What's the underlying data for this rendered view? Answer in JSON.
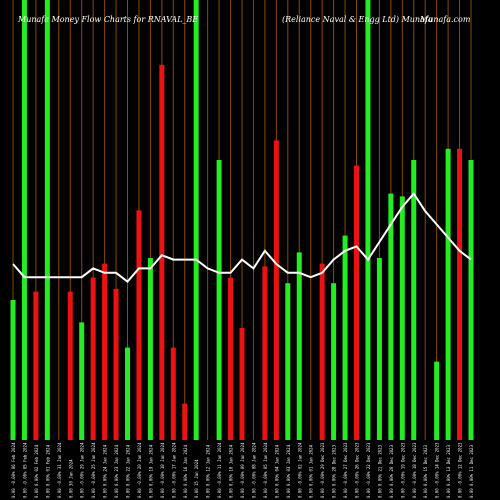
{
  "chart_data": {
    "type": "bar",
    "title_left": "Munafa Money Flow Charts for RNAVAL_BE",
    "title_right": "(Reliance Naval & Engg Ltd) Munafa",
    "title_site": "Munafa.com",
    "categories": [
      "06 Feb 2024",
      "05 Feb 2024",
      "02 Feb 2024",
      "01 Feb 2024",
      "31 Jan 2024",
      "30 Jan 2024",
      "29 Jan 2024",
      "25 Jan 2024",
      "24 Jan 2024",
      "23 Jan 2024",
      "22 Jan 2024",
      "20 Jan 2024",
      "19 Jan 2024",
      "18 Jan 2024",
      "17 Jan 2024",
      "16 Jan 2024",
      "15 Jan 2024",
      "12 Jan 2024",
      "11 Jan 2024",
      "10 Jan 2024",
      "09 Jan 2024",
      "08 Jan 2024",
      "05 Jan 2024",
      "04 Jan 2024",
      "03 Jan 2024",
      "02 Jan 2024",
      "01 Jan 2024",
      "29 Dec 2023",
      "28 Dec 2023",
      "27 Dec 2023",
      "26 Dec 2023",
      "22 Dec 2023",
      "21 Dec 2023",
      "20 Dec 2023",
      "19 Dec 2023",
      "18 Dec 2023",
      "15 Dec 2023",
      "14 Dec 2023",
      "13 Dec 2023",
      "12 Dec 2023",
      "11 Dec 2023"
    ],
    "tick_labels": [
      "0.00 -0.00%",
      "0.00 -0.00%",
      "0.00 0.00%",
      "0.00 0.00%",
      "0.00 -0.00%",
      "0.00",
      "0.00 -0.00%",
      "0.00 -0.00%",
      "0.00 0.00%",
      "0.00 0.00%",
      "0.00 0.00%",
      "0.00 -0.00%",
      "0.00 0.00%",
      "0.00 -0.00%",
      "0.00 -0.00%",
      "0.00 0.00%",
      "0.00",
      "0.00 0.00%",
      "0.00 -0.00%",
      "0.00 0.00%",
      "0.00 -0.00%",
      "0.00 -0.00%",
      "0.00 -0.00%",
      "0.00 0.00%",
      "0.00 0.00%",
      "0.00 -0.00%",
      "0.00 0.00%",
      "0.00 -0.00%",
      "0.00 0.00%",
      "0.00 -0.00%",
      "0.00 -0.00%",
      "0.00 -0.00%",
      "0.00 0.00%",
      "0.00 0.00%",
      "0.00 -0.00%",
      "0.00 -0.00%",
      "0.00 0.00%",
      "0.00 -0.00%",
      "0.00 0.00%",
      "0.00 -0.00%",
      "0.00 0.00%"
    ],
    "values": [
      50,
      100,
      53,
      100,
      0,
      53,
      42,
      58,
      63,
      54,
      33,
      82,
      65,
      134,
      33,
      13,
      45,
      0,
      100,
      58,
      40,
      0,
      62,
      107,
      56,
      67,
      0,
      63,
      56,
      73,
      98,
      25,
      65,
      88,
      87,
      100,
      0,
      28,
      104,
      104,
      100
    ],
    "bar_colors": [
      "green",
      "green",
      "red",
      "green",
      "red",
      "red",
      "green",
      "red",
      "red",
      "red",
      "green",
      "red",
      "green",
      "red",
      "red",
      "red",
      "green",
      "red",
      "green",
      "red",
      "red",
      "green",
      "red",
      "red",
      "green",
      "green",
      "green",
      "red",
      "green",
      "green",
      "red",
      "green",
      "green",
      "green",
      "green",
      "green",
      "red",
      "green",
      "green",
      "red",
      "green"
    ],
    "full_height_flags": [
      false,
      true,
      false,
      true,
      false,
      false,
      false,
      false,
      false,
      false,
      false,
      false,
      false,
      false,
      false,
      false,
      true,
      false,
      false,
      false,
      false,
      false,
      false,
      false,
      false,
      false,
      false,
      false,
      false,
      false,
      false,
      true,
      false,
      false,
      false,
      false,
      false,
      false,
      false,
      false,
      false
    ],
    "line_values": [
      40,
      37,
      37,
      37,
      37,
      37,
      37,
      39,
      38,
      38,
      36,
      39,
      39,
      42,
      41,
      41,
      41,
      39,
      38,
      38,
      41,
      39,
      43,
      40,
      38,
      38,
      37,
      38,
      41,
      43,
      44,
      41,
      45,
      49,
      53,
      56,
      52,
      49,
      46,
      43,
      41
    ],
    "ylim": [
      0,
      150
    ],
    "line_ylim": [
      0,
      100
    ],
    "grid": true,
    "colors": {
      "background": "#000000",
      "green": "#22ee22",
      "red": "#ee1111",
      "grid": "#8a4a00",
      "line": "#ffffff",
      "text": "#ffffff"
    }
  }
}
